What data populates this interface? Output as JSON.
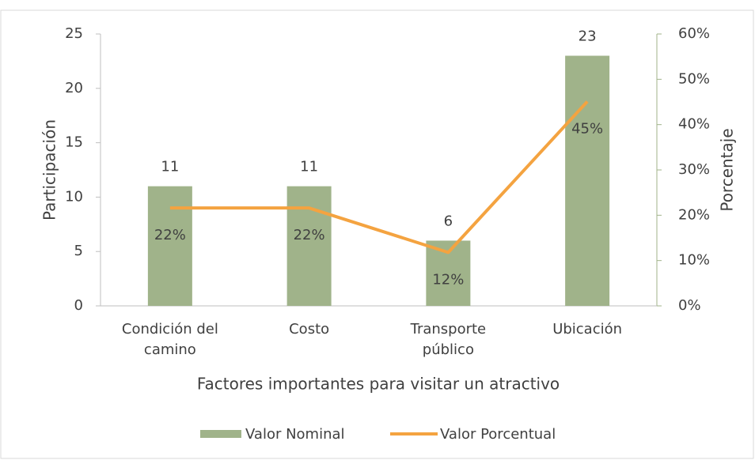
{
  "chart_data": {
    "type": "bar_line",
    "categories": [
      "Condición del camino",
      "Costo",
      "Transporte público",
      "Ubicación"
    ],
    "xlabel": "Factores importantes para visitar un atractivo",
    "ylabel": "Participación",
    "y2label": "Porcentaje",
    "ylim": [
      0,
      25
    ],
    "yticks": [
      0,
      5,
      10,
      15,
      20,
      25
    ],
    "y2lim": [
      0,
      60
    ],
    "y2ticks": [
      {
        "value": 0,
        "label": "0%"
      },
      {
        "value": 10,
        "label": "10%"
      },
      {
        "value": 20,
        "label": "20%"
      },
      {
        "value": 30,
        "label": "30%"
      },
      {
        "value": 40,
        "label": "40%"
      },
      {
        "value": 50,
        "label": "50%"
      },
      {
        "value": 60,
        "label": "60%"
      }
    ],
    "legend": "bottom",
    "series": [
      {
        "name": "Valor Nominal",
        "type": "bar",
        "color": "#a0b38a",
        "values": [
          11,
          11,
          6,
          23
        ]
      },
      {
        "name": "Valor Porcentual",
        "type": "line",
        "axis": "y2",
        "color": "#f4a340",
        "values": [
          21.6,
          21.6,
          11.8,
          45.1
        ],
        "value_labels": [
          "22%",
          "22%",
          "12%",
          "45%"
        ]
      }
    ]
  }
}
